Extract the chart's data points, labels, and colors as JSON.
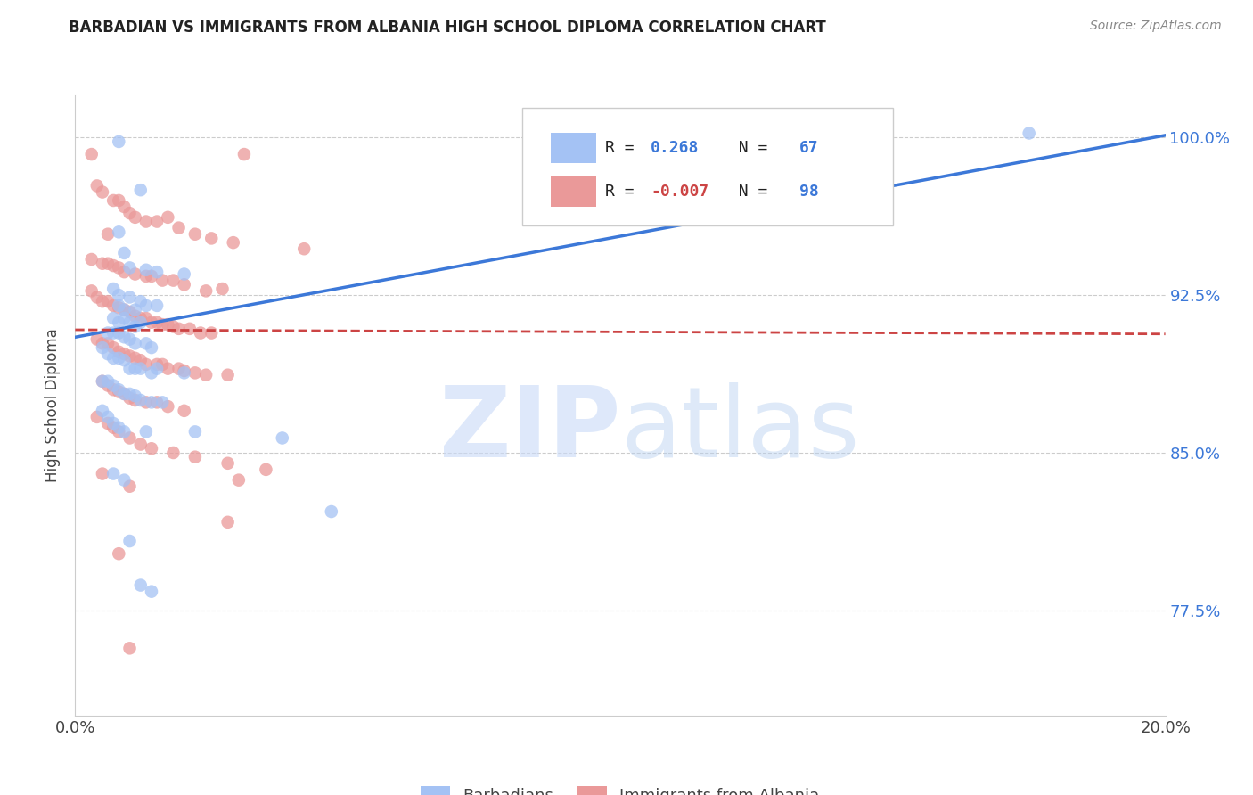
{
  "title": "BARBADIAN VS IMMIGRANTS FROM ALBANIA HIGH SCHOOL DIPLOMA CORRELATION CHART",
  "source": "Source: ZipAtlas.com",
  "ylabel": "High School Diploma",
  "yticks": [
    77.5,
    85.0,
    92.5,
    100.0
  ],
  "xlim": [
    0.0,
    0.2
  ],
  "ylim": [
    0.725,
    1.02
  ],
  "blue_color": "#a4c2f4",
  "pink_color": "#ea9999",
  "blue_line_color": "#3c78d8",
  "pink_line_color": "#cc4444",
  "blue_scatter": [
    [
      0.008,
      0.998
    ],
    [
      0.012,
      0.975
    ],
    [
      0.008,
      0.955
    ],
    [
      0.009,
      0.945
    ],
    [
      0.01,
      0.938
    ],
    [
      0.013,
      0.937
    ],
    [
      0.015,
      0.936
    ],
    [
      0.02,
      0.935
    ],
    [
      0.007,
      0.928
    ],
    [
      0.008,
      0.925
    ],
    [
      0.01,
      0.924
    ],
    [
      0.012,
      0.922
    ],
    [
      0.008,
      0.92
    ],
    [
      0.009,
      0.918
    ],
    [
      0.011,
      0.918
    ],
    [
      0.013,
      0.92
    ],
    [
      0.015,
      0.92
    ],
    [
      0.007,
      0.914
    ],
    [
      0.008,
      0.912
    ],
    [
      0.009,
      0.914
    ],
    [
      0.01,
      0.912
    ],
    [
      0.011,
      0.91
    ],
    [
      0.012,
      0.912
    ],
    [
      0.006,
      0.907
    ],
    [
      0.007,
      0.907
    ],
    [
      0.008,
      0.907
    ],
    [
      0.009,
      0.905
    ],
    [
      0.01,
      0.904
    ],
    [
      0.011,
      0.902
    ],
    [
      0.013,
      0.902
    ],
    [
      0.014,
      0.9
    ],
    [
      0.005,
      0.9
    ],
    [
      0.006,
      0.897
    ],
    [
      0.007,
      0.895
    ],
    [
      0.008,
      0.895
    ],
    [
      0.009,
      0.894
    ],
    [
      0.01,
      0.89
    ],
    [
      0.011,
      0.89
    ],
    [
      0.012,
      0.89
    ],
    [
      0.014,
      0.888
    ],
    [
      0.015,
      0.89
    ],
    [
      0.02,
      0.888
    ],
    [
      0.005,
      0.884
    ],
    [
      0.006,
      0.884
    ],
    [
      0.007,
      0.882
    ],
    [
      0.008,
      0.88
    ],
    [
      0.009,
      0.878
    ],
    [
      0.01,
      0.878
    ],
    [
      0.011,
      0.877
    ],
    [
      0.012,
      0.875
    ],
    [
      0.014,
      0.874
    ],
    [
      0.016,
      0.874
    ],
    [
      0.005,
      0.87
    ],
    [
      0.006,
      0.867
    ],
    [
      0.007,
      0.864
    ],
    [
      0.008,
      0.862
    ],
    [
      0.009,
      0.86
    ],
    [
      0.013,
      0.86
    ],
    [
      0.022,
      0.86
    ],
    [
      0.038,
      0.857
    ],
    [
      0.007,
      0.84
    ],
    [
      0.009,
      0.837
    ],
    [
      0.047,
      0.822
    ],
    [
      0.01,
      0.808
    ],
    [
      0.012,
      0.787
    ],
    [
      0.014,
      0.784
    ],
    [
      0.175,
      1.002
    ]
  ],
  "pink_scatter": [
    [
      0.003,
      0.992
    ],
    [
      0.031,
      0.992
    ],
    [
      0.004,
      0.977
    ],
    [
      0.005,
      0.974
    ],
    [
      0.007,
      0.97
    ],
    [
      0.008,
      0.97
    ],
    [
      0.009,
      0.967
    ],
    [
      0.01,
      0.964
    ],
    [
      0.011,
      0.962
    ],
    [
      0.013,
      0.96
    ],
    [
      0.015,
      0.96
    ],
    [
      0.017,
      0.962
    ],
    [
      0.019,
      0.957
    ],
    [
      0.022,
      0.954
    ],
    [
      0.006,
      0.954
    ],
    [
      0.025,
      0.952
    ],
    [
      0.029,
      0.95
    ],
    [
      0.042,
      0.947
    ],
    [
      0.003,
      0.942
    ],
    [
      0.005,
      0.94
    ],
    [
      0.006,
      0.94
    ],
    [
      0.007,
      0.939
    ],
    [
      0.008,
      0.938
    ],
    [
      0.009,
      0.936
    ],
    [
      0.011,
      0.935
    ],
    [
      0.013,
      0.934
    ],
    [
      0.014,
      0.934
    ],
    [
      0.016,
      0.932
    ],
    [
      0.018,
      0.932
    ],
    [
      0.02,
      0.93
    ],
    [
      0.024,
      0.927
    ],
    [
      0.027,
      0.928
    ],
    [
      0.003,
      0.927
    ],
    [
      0.004,
      0.924
    ],
    [
      0.005,
      0.922
    ],
    [
      0.006,
      0.922
    ],
    [
      0.007,
      0.92
    ],
    [
      0.008,
      0.919
    ],
    [
      0.009,
      0.918
    ],
    [
      0.01,
      0.917
    ],
    [
      0.011,
      0.915
    ],
    [
      0.012,
      0.914
    ],
    [
      0.013,
      0.914
    ],
    [
      0.014,
      0.912
    ],
    [
      0.015,
      0.912
    ],
    [
      0.016,
      0.911
    ],
    [
      0.017,
      0.911
    ],
    [
      0.018,
      0.91
    ],
    [
      0.019,
      0.909
    ],
    [
      0.021,
      0.909
    ],
    [
      0.023,
      0.907
    ],
    [
      0.025,
      0.907
    ],
    [
      0.004,
      0.904
    ],
    [
      0.005,
      0.902
    ],
    [
      0.006,
      0.902
    ],
    [
      0.007,
      0.9
    ],
    [
      0.008,
      0.898
    ],
    [
      0.009,
      0.897
    ],
    [
      0.01,
      0.896
    ],
    [
      0.011,
      0.895
    ],
    [
      0.012,
      0.894
    ],
    [
      0.013,
      0.892
    ],
    [
      0.015,
      0.892
    ],
    [
      0.016,
      0.892
    ],
    [
      0.017,
      0.89
    ],
    [
      0.019,
      0.89
    ],
    [
      0.02,
      0.889
    ],
    [
      0.022,
      0.888
    ],
    [
      0.024,
      0.887
    ],
    [
      0.028,
      0.887
    ],
    [
      0.005,
      0.884
    ],
    [
      0.006,
      0.882
    ],
    [
      0.007,
      0.88
    ],
    [
      0.008,
      0.879
    ],
    [
      0.009,
      0.878
    ],
    [
      0.01,
      0.876
    ],
    [
      0.011,
      0.875
    ],
    [
      0.013,
      0.874
    ],
    [
      0.015,
      0.874
    ],
    [
      0.017,
      0.872
    ],
    [
      0.02,
      0.87
    ],
    [
      0.004,
      0.867
    ],
    [
      0.006,
      0.864
    ],
    [
      0.007,
      0.862
    ],
    [
      0.008,
      0.86
    ],
    [
      0.01,
      0.857
    ],
    [
      0.012,
      0.854
    ],
    [
      0.014,
      0.852
    ],
    [
      0.018,
      0.85
    ],
    [
      0.022,
      0.848
    ],
    [
      0.028,
      0.845
    ],
    [
      0.035,
      0.842
    ],
    [
      0.005,
      0.84
    ],
    [
      0.01,
      0.834
    ],
    [
      0.008,
      0.802
    ],
    [
      0.03,
      0.837
    ],
    [
      0.028,
      0.817
    ],
    [
      0.01,
      0.757
    ]
  ],
  "blue_line_x": [
    0.0,
    0.2
  ],
  "blue_line_y": [
    0.905,
    1.001
  ],
  "pink_line_x": [
    0.0,
    0.2
  ],
  "pink_line_y": [
    0.9085,
    0.9065
  ]
}
